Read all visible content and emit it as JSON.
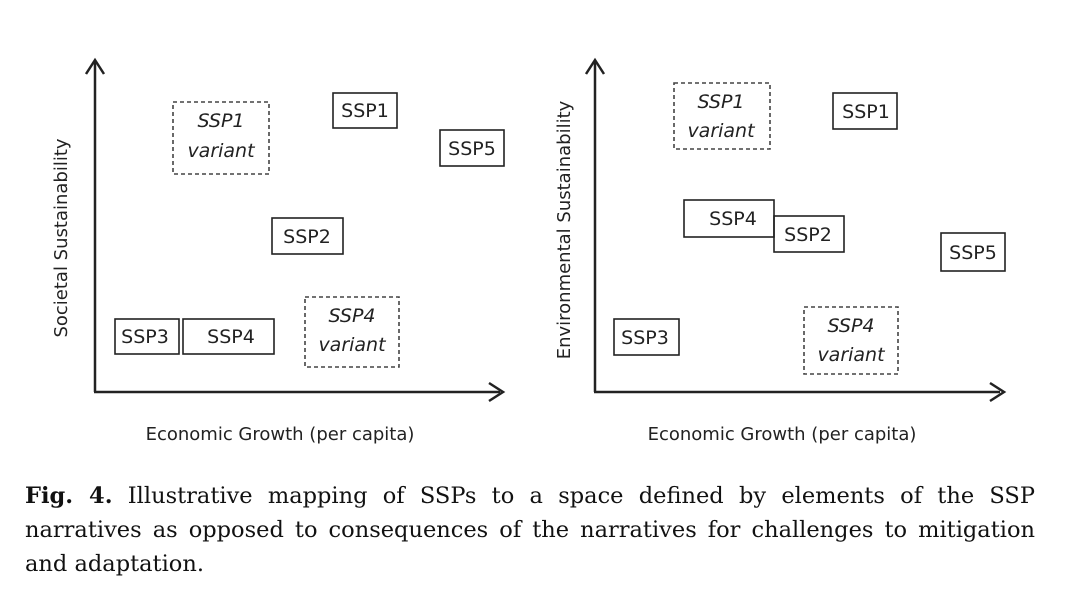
{
  "panels": [
    {
      "xlabel": "Economic Growth (per capita)",
      "ylabel": "Societal Sustainability",
      "boxes": [
        {
          "lines": [
            "SSP1",
            "variant"
          ],
          "variant": true
        },
        {
          "lines": [
            "SSP1"
          ],
          "variant": false
        },
        {
          "lines": [
            "SSP5"
          ],
          "variant": false
        },
        {
          "lines": [
            "SSP2"
          ],
          "variant": false
        },
        {
          "lines": [
            "SSP3"
          ],
          "variant": false
        },
        {
          "lines": [
            "SSP4"
          ],
          "variant": false
        },
        {
          "lines": [
            "SSP4",
            "variant"
          ],
          "variant": true
        }
      ]
    },
    {
      "xlabel": "Economic Growth (per capita)",
      "ylabel": "Environmental Sustainability",
      "boxes": [
        {
          "lines": [
            "SSP1",
            "variant"
          ],
          "variant": true
        },
        {
          "lines": [
            "SSP1"
          ],
          "variant": false
        },
        {
          "lines": [
            "SSP4"
          ],
          "variant": false
        },
        {
          "lines": [
            "SSP2"
          ],
          "variant": false
        },
        {
          "lines": [
            "SSP5"
          ],
          "variant": false
        },
        {
          "lines": [
            "SSP3"
          ],
          "variant": false
        },
        {
          "lines": [
            "SSP4",
            "variant"
          ],
          "variant": true
        }
      ]
    }
  ],
  "caption": {
    "label": "Fig. 4.",
    "text": "Illustrative mapping of SSPs to a space defined by elements of the SSP narratives as opposed to consequences of the narratives for challenges to mitigation and adaptation."
  }
}
